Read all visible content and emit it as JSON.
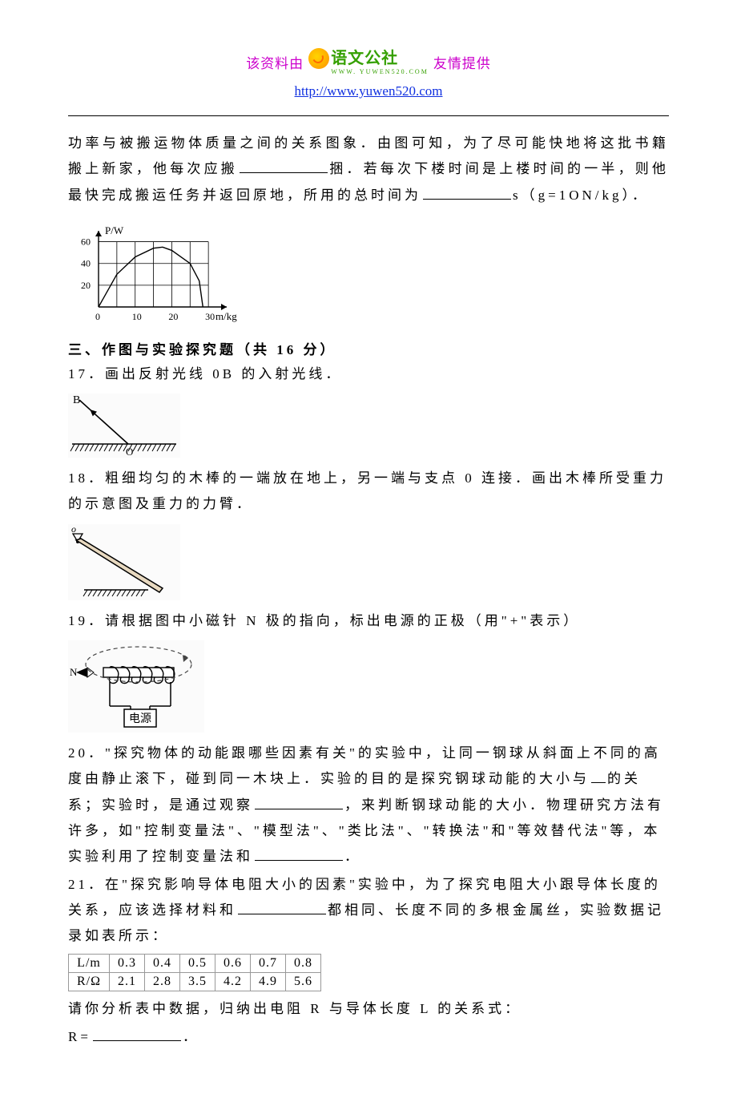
{
  "header": {
    "left_text": "该资料由",
    "right_text": "友情提供",
    "logo_text": "语文公社",
    "logo_sub": "WWW. YUWEN520.COM",
    "url": "http://www.yuwen520.com",
    "colors": {
      "pink": "#cc00cc",
      "blue_link": "#1030e0",
      "logo_green": "#35a000"
    }
  },
  "intro_paragraph": {
    "t1": "功率与被搬运物体质量之间的关系图象．由图可知，为了尽可能快地将这批书籍搬上新家，他每次应搬",
    "t2": "捆．若每次下楼时间是上楼时间的一半，则他最快完成搬运任务并返回原地，所用的总时间为",
    "t3": "s（g=1ON/kg）．"
  },
  "chart_power_mass": {
    "type": "line",
    "x_label": "m/kg",
    "y_label": "P/W",
    "xlim": [
      0,
      35
    ],
    "ylim": [
      0,
      70
    ],
    "xtick_step": 5,
    "ytick_step": 20,
    "tick_labels_x": [
      "0",
      "",
      "10",
      "",
      "20",
      "",
      "30"
    ],
    "tick_labels_y": [
      "20",
      "40",
      "60"
    ],
    "curve_points": [
      [
        0,
        0
      ],
      [
        5,
        30
      ],
      [
        10,
        46
      ],
      [
        15,
        54
      ],
      [
        17.5,
        55
      ],
      [
        20,
        52
      ],
      [
        25,
        40
      ],
      [
        27.5,
        24
      ],
      [
        28.5,
        0
      ]
    ],
    "axis_color": "#000000",
    "grid_color": "#000000",
    "line_color": "#000000",
    "line_width": 1.4,
    "label_fontsize": 13,
    "background_color": "#ffffff"
  },
  "section3_title": "三、作图与实验探究题（共 16 分）",
  "q17": {
    "text": "17．画出反射光线 0B 的入射光线．",
    "fig": {
      "type": "diagram",
      "label_B": "B",
      "label_O": "O",
      "mirror_color": "#000000",
      "ray_color": "#000000",
      "hatch_color": "#000000",
      "background_color": "#fbfbfb",
      "line_width": 1.6
    }
  },
  "q18": {
    "text": "18．粗细均匀的木棒的一端放在地上，另一端与支点 0 连接．画出木棒所受重力的示意图及重力的力臂．",
    "fig": {
      "type": "diagram",
      "label_o": "o",
      "rod_color": "#000000",
      "rod_fill": "#e8d9c0",
      "pivot_color": "#000000",
      "ground_color": "#000000",
      "background_color": "#fbfbfb",
      "line_width": 1.6
    }
  },
  "q19": {
    "text": "19．请根据图中小磁针 N 极的指向，标出电源的正极（用\"+\"表示）",
    "fig": {
      "type": "diagram",
      "label_N": "N",
      "box_label": "电源",
      "wire_color": "#000000",
      "field_line_color": "#444444",
      "background_color": "#fbfbfb",
      "line_width": 1.5,
      "dash": "5,4"
    }
  },
  "q20": {
    "t1": "20．\"探究物体的动能跟哪些因素有关\"的实验中，让同一钢球从斜面上不同的高度由静止滚下，碰到同一木块上．实验的目的是探究钢球动能的大小与",
    "t1b": "的关系；实验时，是通过观察",
    "t2": "，来判断钢球动能的大小．物理研究方法有许多，如\"控制变量法\"、\"模型法\"、\"类比法\"、\"转换法\"和\"等效替代法\"等，本实验利用了控制变量法和",
    "t3": "．"
  },
  "q21": {
    "t1": "21．在\"探究影响导体电阻大小的因素\"实验中，为了探究电阻大小跟导体长度的关系，应该选择材料和",
    "t2": "都相同、长度不同的多根金属丝，实验数据记录如表所示：",
    "table": {
      "type": "table",
      "columns": [
        "L/m",
        "0.3",
        "0.4",
        "0.5",
        "0.6",
        "0.7",
        "0.8"
      ],
      "rows": [
        [
          "R/Ω",
          "2.1",
          "2.8",
          "3.5",
          "4.2",
          "4.9",
          "5.6"
        ]
      ],
      "border_color": "#999999",
      "cell_padding": "2px 10px",
      "fontsize": 16
    },
    "t3": "请你分析表中数据，归纳出电阻 R 与导体长度 L 的关系式：",
    "t4_prefix": "R=",
    "t4_suffix": "．"
  }
}
